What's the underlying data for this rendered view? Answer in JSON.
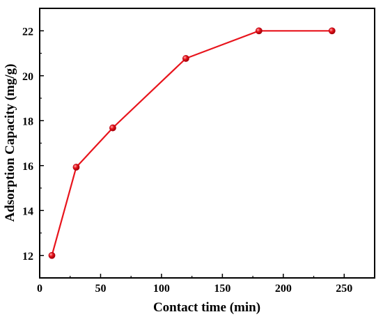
{
  "chart_data": {
    "type": "line",
    "title": "",
    "xlabel": "Contact time (min)",
    "ylabel": "Adsorption Capacity (mg/g)",
    "xlim": [
      0,
      275
    ],
    "ylim": [
      11,
      23
    ],
    "xticks": [
      0,
      50,
      100,
      150,
      200,
      250
    ],
    "yticks": [
      12,
      14,
      16,
      18,
      20,
      22
    ],
    "grid": false,
    "legend": "none",
    "series": [
      {
        "color": "#e8141c",
        "marker": "circle",
        "x": [
          10,
          30,
          60,
          120,
          180,
          240
        ],
        "y": [
          12.0,
          15.93,
          17.68,
          20.77,
          22.0,
          22.0
        ]
      }
    ]
  }
}
